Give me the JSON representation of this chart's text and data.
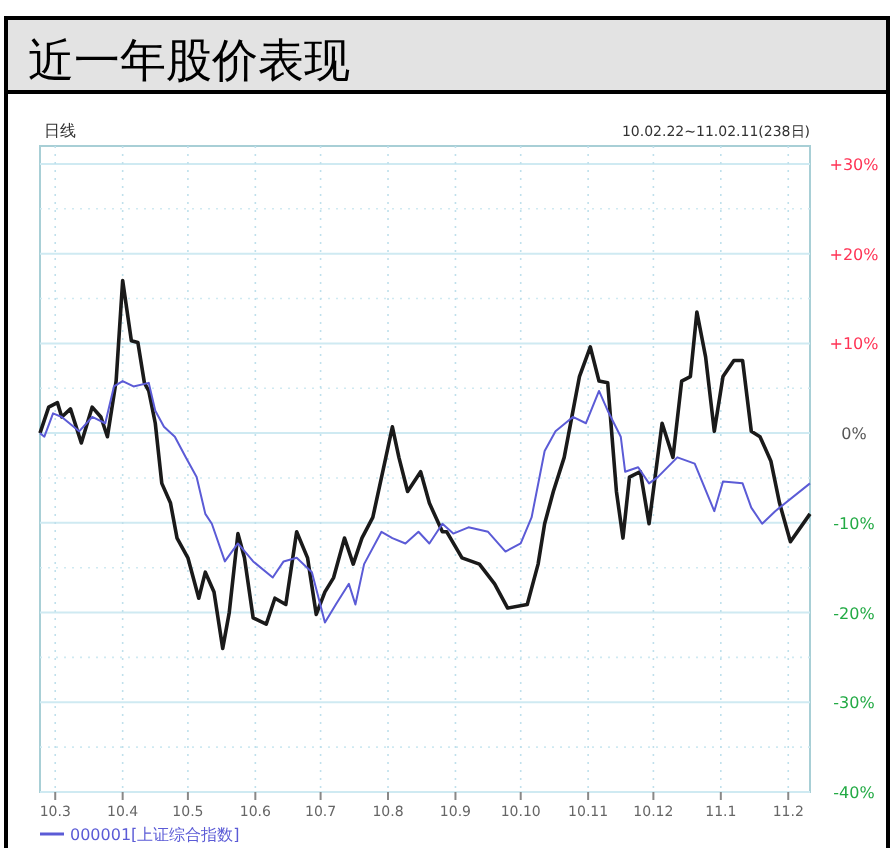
{
  "chart_data": {
    "type": "line",
    "title": "近一年股价表现",
    "subtitle": "10.02.22~11.02.11(238日)",
    "annotations": [
      "日线"
    ],
    "xlim": [
      "2010-02-22",
      "2011-02-11"
    ],
    "xticks": [
      {
        "value": "2010-03-01",
        "label": "10.3"
      },
      {
        "value": "2010-04-01",
        "label": "10.4"
      },
      {
        "value": "2010-05-01",
        "label": "10.5"
      },
      {
        "value": "2010-06-01",
        "label": "10.6"
      },
      {
        "value": "2010-07-01",
        "label": "10.7"
      },
      {
        "value": "2010-08-01",
        "label": "10.8"
      },
      {
        "value": "2010-09-01",
        "label": "10.9"
      },
      {
        "value": "2010-10-01",
        "label": "10.10"
      },
      {
        "value": "2010-11-01",
        "label": "10.11"
      },
      {
        "value": "2010-12-01",
        "label": "10.12"
      },
      {
        "value": "2011-01-01",
        "label": "11.1"
      },
      {
        "value": "2011-02-01",
        "label": "11.2"
      }
    ],
    "ylim": [
      -40,
      32
    ],
    "yticks": [
      {
        "value": 30,
        "label": "+30%"
      },
      {
        "value": 20,
        "label": "+20%"
      },
      {
        "value": 10,
        "label": "+10%"
      },
      {
        "value": 0,
        "label": "0%"
      },
      {
        "value": -10,
        "label": "-10%"
      },
      {
        "value": -20,
        "label": "-20%"
      },
      {
        "value": -30,
        "label": "-30%"
      },
      {
        "value": -40,
        "label": "-40%"
      }
    ],
    "grid": true,
    "legend": "bottom",
    "marker": "none",
    "line_style": "solid",
    "series": [
      {
        "color": "#1a1a1a",
        "x": [
          "2010-02-22",
          "2010-02-26",
          "2010-03-02",
          "2010-03-04",
          "2010-03-08",
          "2010-03-13",
          "2010-03-18",
          "2010-03-22",
          "2010-03-25",
          "2010-03-29",
          "2010-04-01",
          "2010-04-05",
          "2010-04-08",
          "2010-04-11",
          "2010-04-13",
          "2010-04-16",
          "2010-04-19",
          "2010-04-23",
          "2010-04-26",
          "2010-05-01",
          "2010-05-06",
          "2010-05-09",
          "2010-05-13",
          "2010-05-17",
          "2010-05-20",
          "2010-05-24",
          "2010-05-27",
          "2010-05-31",
          "2010-06-06",
          "2010-06-10",
          "2010-06-15",
          "2010-06-20",
          "2010-06-25",
          "2010-06-29",
          "2010-07-03",
          "2010-07-07",
          "2010-07-12",
          "2010-07-16",
          "2010-07-20",
          "2010-07-25",
          "2010-07-31",
          "2010-08-03",
          "2010-08-06",
          "2010-08-10",
          "2010-08-16",
          "2010-08-20",
          "2010-08-26",
          "2010-08-28",
          "2010-09-04",
          "2010-09-12",
          "2010-09-19",
          "2010-09-25",
          "2010-10-04",
          "2010-10-09",
          "2010-10-12",
          "2010-10-16",
          "2010-10-21",
          "2010-10-28",
          "2010-11-02",
          "2010-11-06",
          "2010-11-10",
          "2010-11-14",
          "2010-11-17",
          "2010-11-20",
          "2010-11-25",
          "2010-11-29",
          "2010-12-05",
          "2010-12-10",
          "2010-12-14",
          "2010-12-18",
          "2010-12-21",
          "2010-12-25",
          "2010-12-29",
          "2011-01-02",
          "2011-01-07",
          "2011-01-11",
          "2011-01-15",
          "2011-01-19",
          "2011-01-24",
          "2011-01-28",
          "2011-02-02",
          "2011-02-11"
        ],
        "values": [
          0,
          2.9,
          3.4,
          1.8,
          2.7,
          -1.1,
          2.9,
          1.8,
          -0.4,
          5.8,
          17,
          10.3,
          10.1,
          5.6,
          4.7,
          1.1,
          -5.6,
          -7.8,
          -11.7,
          -13.9,
          -18.4,
          -15.5,
          -17.7,
          -24,
          -20,
          -11.2,
          -13.9,
          -20.6,
          -21.3,
          -18.4,
          -19.1,
          -11,
          -13.9,
          -20.2,
          -17.7,
          -16.1,
          -11.7,
          -14.6,
          -11.7,
          -9.4,
          -2.7,
          0.7,
          -2.7,
          -6.5,
          -4.3,
          -7.8,
          -11,
          -11,
          -13.9,
          -14.6,
          -16.8,
          -19.5,
          -19.1,
          -14.6,
          -10.1,
          -6.5,
          -2.7,
          6.3,
          9.6,
          5.8,
          5.6,
          -6.5,
          -11.7,
          -4.9,
          -4.3,
          -10.1,
          1.1,
          -2.7,
          5.8,
          6.3,
          13.5,
          8.5,
          0.2,
          6.3,
          8.1,
          8.1,
          0.2,
          -0.4,
          -3.1,
          -7.8,
          -12.1,
          -9
        ]
      },
      {
        "name": "000001[上证综合指数]",
        "color": "#5b5bd6",
        "x": [
          "2010-02-22",
          "2010-02-24",
          "2010-02-28",
          "2010-03-04",
          "2010-03-12",
          "2010-03-18",
          "2010-03-24",
          "2010-03-28",
          "2010-04-01",
          "2010-04-06",
          "2010-04-13",
          "2010-04-16",
          "2010-04-20",
          "2010-04-25",
          "2010-04-30",
          "2010-05-05",
          "2010-05-09",
          "2010-05-12",
          "2010-05-18",
          "2010-05-24",
          "2010-05-31",
          "2010-06-09",
          "2010-06-14",
          "2010-06-20",
          "2010-06-27",
          "2010-07-03",
          "2010-07-08",
          "2010-07-14",
          "2010-07-17",
          "2010-07-21",
          "2010-07-29",
          "2010-08-03",
          "2010-08-09",
          "2010-08-15",
          "2010-08-20",
          "2010-08-26",
          "2010-08-31",
          "2010-09-07",
          "2010-09-16",
          "2010-09-24",
          "2010-10-01",
          "2010-10-06",
          "2010-10-12",
          "2010-10-17",
          "2010-10-25",
          "2010-10-31",
          "2010-11-06",
          "2010-11-10",
          "2010-11-16",
          "2010-11-18",
          "2010-11-24",
          "2010-11-29",
          "2010-12-03",
          "2010-12-12",
          "2010-12-20",
          "2010-12-29",
          "2011-01-02",
          "2011-01-11",
          "2011-01-15",
          "2011-01-20",
          "2011-01-26",
          "2011-02-11"
        ],
        "values": [
          0,
          -0.4,
          2.2,
          1.8,
          0.2,
          1.8,
          1.1,
          5.2,
          5.8,
          5.2,
          5.6,
          2.5,
          0.7,
          -0.4,
          -2.7,
          -4.9,
          -9,
          -10.1,
          -14.3,
          -12.3,
          -14.3,
          -16.1,
          -14.3,
          -13.9,
          -15.5,
          -21.1,
          -19.1,
          -16.8,
          -19.1,
          -14.6,
          -11,
          -11.7,
          -12.3,
          -11,
          -12.3,
          -10.1,
          -11.2,
          -10.5,
          -11,
          -13.2,
          -12.3,
          -9.4,
          -2,
          0.2,
          1.8,
          1.1,
          4.7,
          2.5,
          -0.4,
          -4.3,
          -3.8,
          -5.6,
          -4.9,
          -2.7,
          -3.4,
          -8.7,
          -5.4,
          -5.6,
          -8.3,
          -10.1,
          -8.7,
          -5.6
        ]
      }
    ]
  }
}
